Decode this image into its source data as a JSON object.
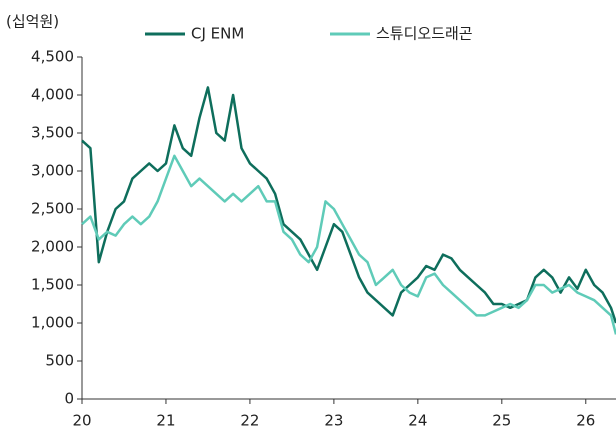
{
  "chart_data": {
    "type": "line",
    "ylabel": "(십억원)",
    "x": [
      20.0,
      20.1,
      20.2,
      20.3,
      20.4,
      20.5,
      20.6,
      20.7,
      20.8,
      20.9,
      21.0,
      21.1,
      21.2,
      21.3,
      21.4,
      21.5,
      21.6,
      21.7,
      21.8,
      21.9,
      22.0,
      22.1,
      22.2,
      22.3,
      22.4,
      22.5,
      22.6,
      22.7,
      22.8,
      22.9,
      23.0,
      23.1,
      23.2,
      23.3,
      23.4,
      23.5,
      23.6,
      23.7,
      23.8,
      23.9,
      24.0,
      24.1,
      24.2,
      24.3,
      24.4,
      24.5,
      24.6,
      24.7,
      24.8,
      24.9,
      25.0,
      25.1,
      25.2,
      25.3,
      25.4,
      25.5,
      25.6,
      25.7,
      25.8,
      25.9,
      26.0,
      26.1,
      26.2,
      26.3,
      26.36
    ],
    "series": [
      {
        "name": "CJ ENM",
        "color": "#0e6e5c",
        "values": [
          3400,
          3300,
          1800,
          2200,
          2500,
          2600,
          2900,
          3000,
          3100,
          3000,
          3100,
          3600,
          3300,
          3200,
          3700,
          4100,
          3500,
          3400,
          4000,
          3300,
          3100,
          3000,
          2900,
          2700,
          2300,
          2200,
          2100,
          1900,
          1700,
          2000,
          2300,
          2200,
          1900,
          1600,
          1400,
          1300,
          1200,
          1100,
          1400,
          1500,
          1600,
          1750,
          1700,
          1900,
          1850,
          1700,
          1600,
          1500,
          1400,
          1250,
          1250,
          1200,
          1250,
          1300,
          1600,
          1700,
          1600,
          1400,
          1600,
          1450,
          1700,
          1500,
          1400,
          1200,
          1000
        ]
      },
      {
        "name": "스튜디오드래곤",
        "color": "#5fcbb8",
        "values": [
          2300,
          2400,
          2100,
          2200,
          2150,
          2300,
          2400,
          2300,
          2400,
          2600,
          2900,
          3200,
          3000,
          2800,
          2900,
          2800,
          2700,
          2600,
          2700,
          2600,
          2700,
          2800,
          2600,
          2600,
          2200,
          2100,
          1900,
          1800,
          2000,
          2600,
          2500,
          2300,
          2100,
          1900,
          1800,
          1500,
          1600,
          1700,
          1500,
          1400,
          1350,
          1600,
          1650,
          1500,
          1400,
          1300,
          1200,
          1100,
          1100,
          1150,
          1200,
          1250,
          1200,
          1300,
          1500,
          1500,
          1400,
          1450,
          1500,
          1400,
          1350,
          1300,
          1200,
          1100,
          850
        ]
      }
    ],
    "xlim": [
      20,
      26.36
    ],
    "xticks": [
      20,
      21,
      22,
      23,
      24,
      25,
      26
    ],
    "ylim": [
      0,
      4500
    ],
    "yticks": [
      0,
      500,
      {
        "value": 1000,
        "label": "1,000"
      },
      {
        "value": 1500,
        "label": "1,500"
      },
      {
        "value": 2000,
        "label": "2,000"
      },
      {
        "value": 2500,
        "label": "2,500"
      },
      {
        "value": 3000,
        "label": "3,000"
      },
      {
        "value": 3500,
        "label": "3,500"
      },
      {
        "value": 4000,
        "label": "4,000"
      },
      {
        "value": 4500,
        "label": "4,500"
      }
    ],
    "legend": "top"
  }
}
